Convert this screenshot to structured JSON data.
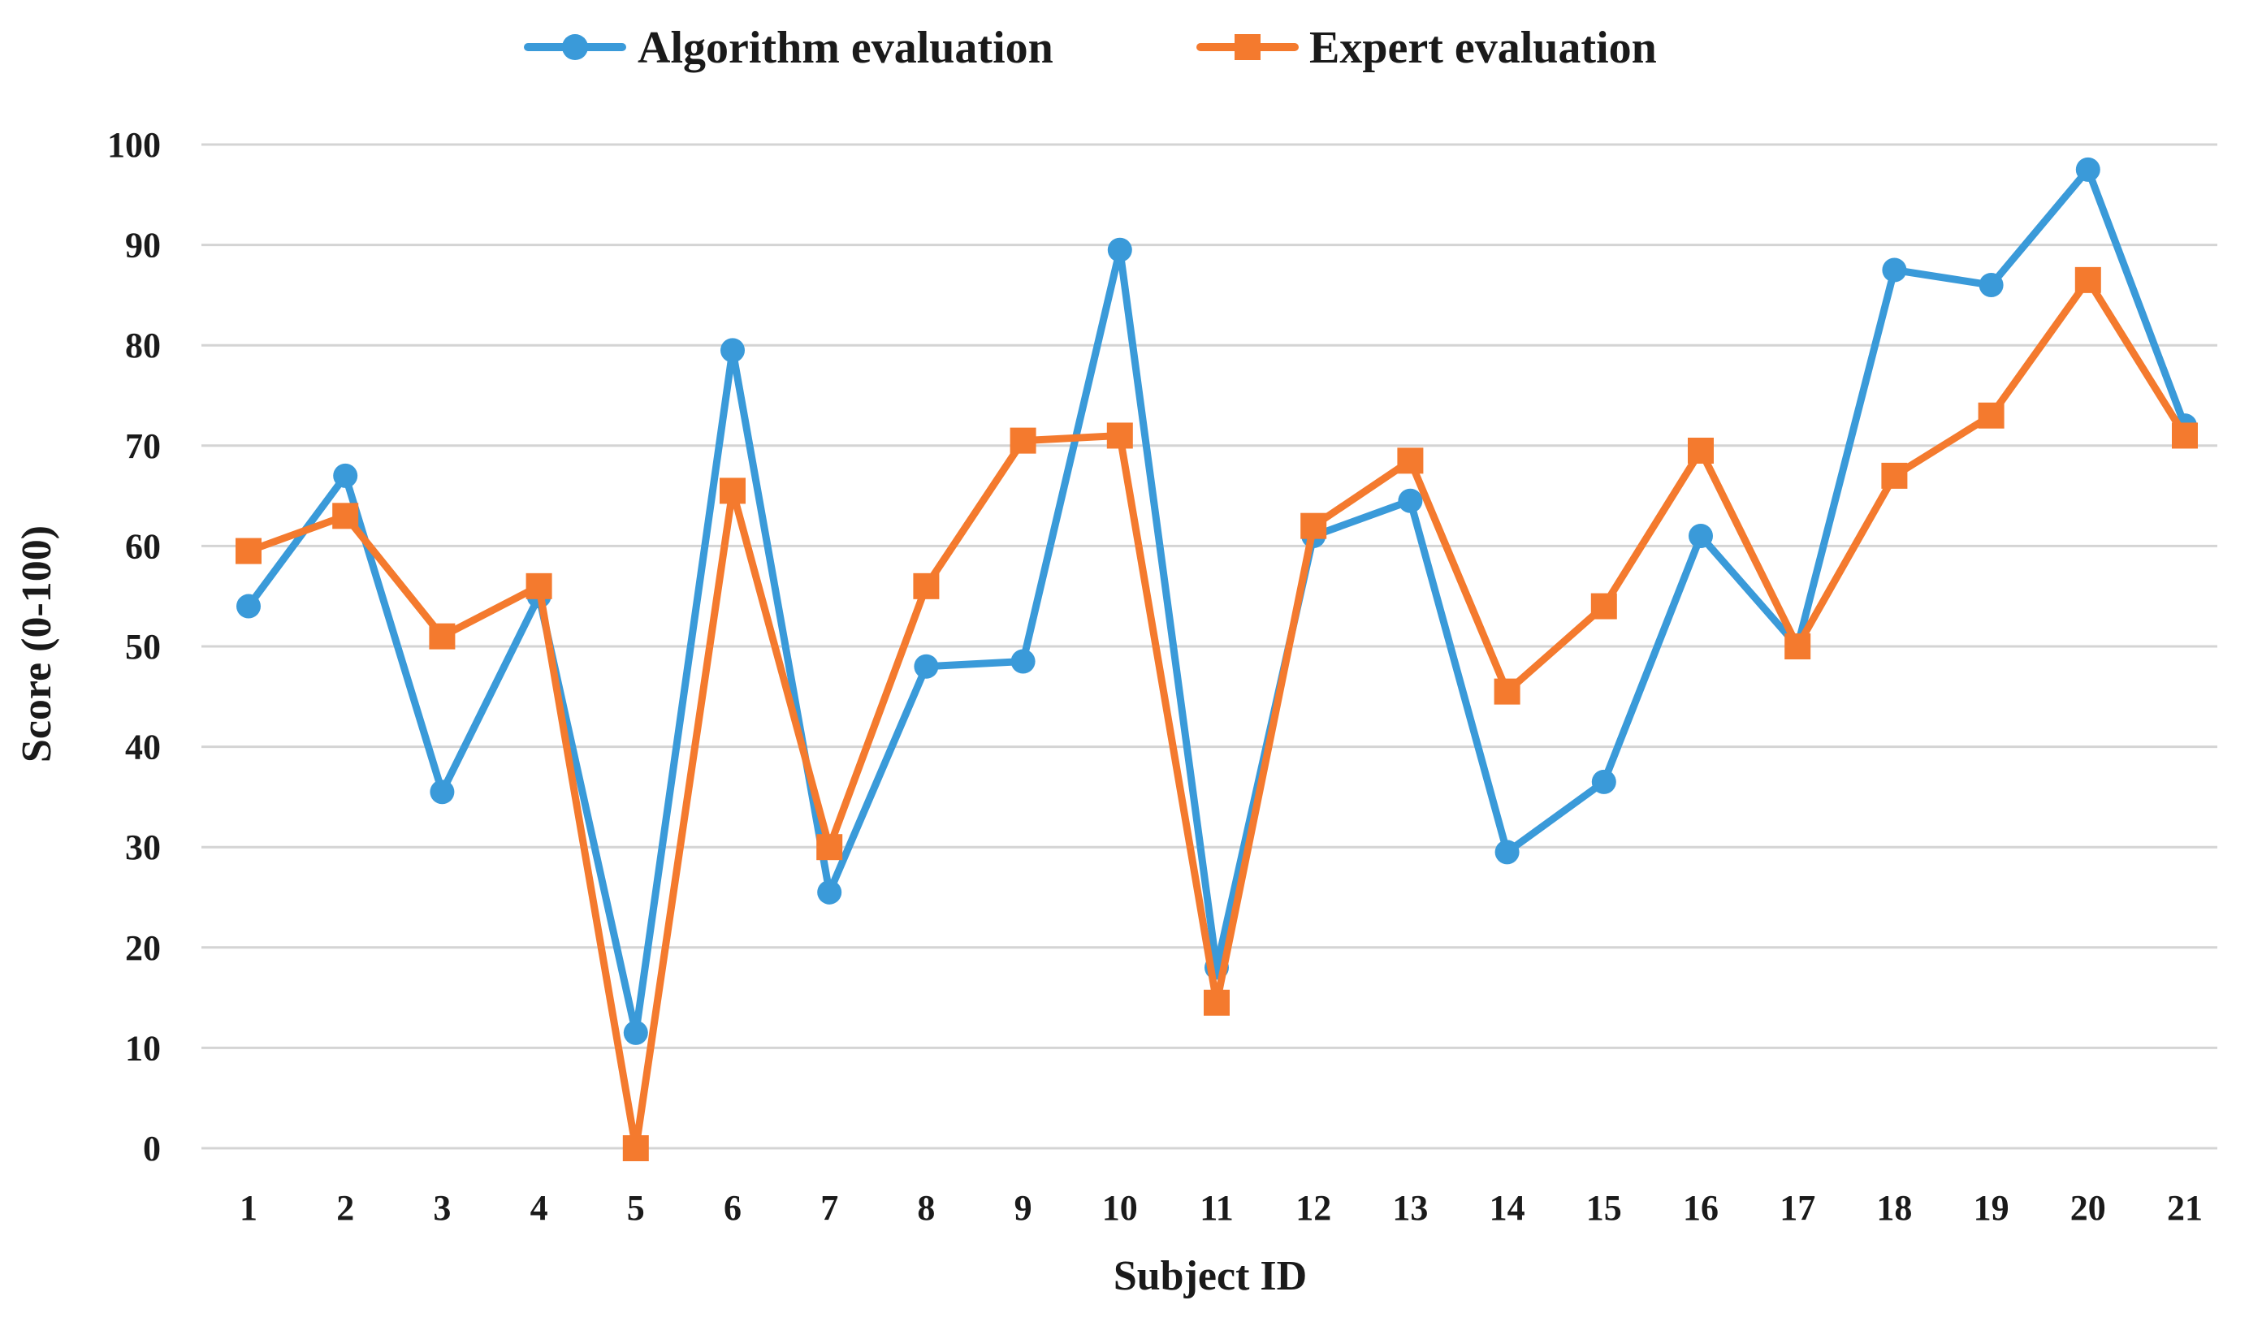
{
  "chart_data": {
    "type": "line",
    "title": "",
    "xlabel": "Subject ID",
    "ylabel": "Score (0-100)",
    "ylim": [
      0,
      100
    ],
    "yticks": [
      0,
      10,
      20,
      30,
      40,
      50,
      60,
      70,
      80,
      90,
      100
    ],
    "grid": true,
    "legend_position": "top-center",
    "categories": [
      "1",
      "2",
      "3",
      "4",
      "5",
      "6",
      "7",
      "8",
      "9",
      "10",
      "11",
      "12",
      "13",
      "14",
      "15",
      "16",
      "17",
      "18",
      "19",
      "20",
      "21"
    ],
    "series": [
      {
        "name": "Algorithm evaluation",
        "color": "#3A9AD9",
        "marker": "circle",
        "values": [
          54,
          67,
          35.5,
          55,
          11.5,
          79.5,
          25.5,
          48,
          48.5,
          89.5,
          18,
          61,
          64.5,
          29.5,
          36.5,
          61,
          50,
          87.5,
          86,
          97.5,
          72
        ]
      },
      {
        "name": "Expert evaluation",
        "color": "#F47A2E",
        "marker": "square",
        "values": [
          59.5,
          63,
          51,
          56,
          0,
          65.5,
          30,
          56,
          70.5,
          71,
          14.5,
          62,
          68.5,
          45.5,
          54,
          69.5,
          50,
          67,
          73,
          86.5,
          71
        ]
      }
    ]
  }
}
